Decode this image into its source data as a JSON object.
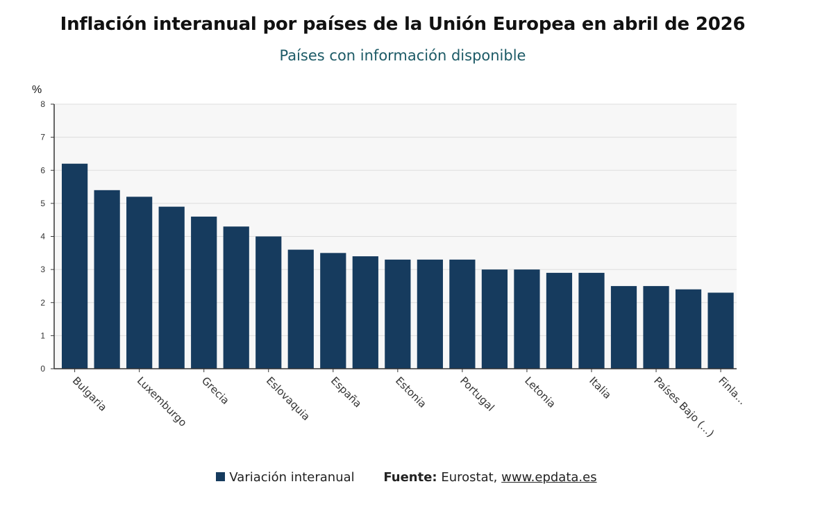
{
  "title": "Inflación interanual por países de la Unión Europea en abril de 2026",
  "subtitle": "Países con información disponible",
  "colors": {
    "bar": "#163b5e",
    "plot_bg": "#f7f7f7",
    "grid": "#dddddd",
    "subtitle": "#1c5a66"
  },
  "chart_data": {
    "type": "bar",
    "ylabel": "%",
    "ylim": [
      0,
      8
    ],
    "yticks": [
      0,
      1,
      2,
      3,
      4,
      5,
      6,
      7,
      8
    ],
    "grid": true,
    "categories": [
      "Bulgaria",
      "",
      "Luxemburgo",
      "",
      "Grecia",
      "",
      "Eslovaquia",
      "",
      "España",
      "",
      "Estonia",
      "",
      "Portugal",
      "",
      "Letonia",
      "",
      "Italia",
      "",
      "Países Bajo (...)",
      "",
      "Finla..."
    ],
    "series": [
      {
        "name": "Variación interanual",
        "values": [
          6.2,
          5.4,
          5.2,
          4.9,
          4.6,
          4.3,
          4.0,
          3.6,
          3.5,
          3.4,
          3.3,
          3.3,
          3.3,
          3.0,
          3.0,
          2.9,
          2.9,
          2.5,
          2.5,
          2.4,
          2.3
        ]
      }
    ]
  },
  "legend": {
    "series_label": "Variación interanual",
    "source_label": "Fuente:",
    "source_text": "Eurostat,",
    "source_link": "www.epdata.es"
  }
}
